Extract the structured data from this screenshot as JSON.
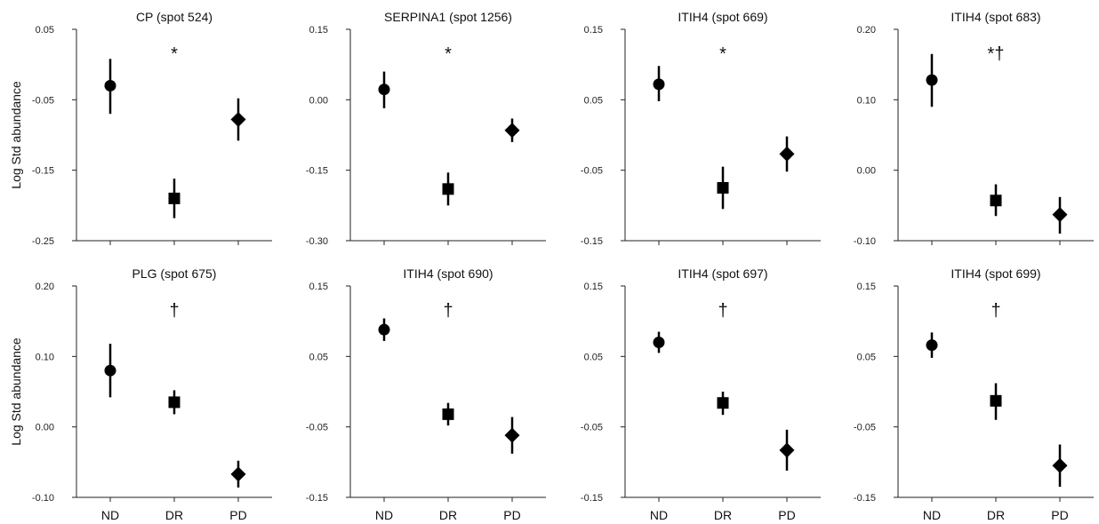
{
  "chart_data": [
    {
      "type": "scatter",
      "title": "CP (spot 524)",
      "ylabel": "Log Std abundance",
      "categories": [
        "ND",
        "DR",
        "PD"
      ],
      "ylim": [
        -0.25,
        0.05
      ],
      "yticks": [
        "0.05",
        "-0.05",
        "-0.15",
        "-0.25"
      ],
      "annotation": "*",
      "points": [
        {
          "category": "ND",
          "y": -0.03,
          "low": -0.07,
          "high": 0.008,
          "marker": "circle"
        },
        {
          "category": "DR",
          "y": -0.19,
          "low": -0.218,
          "high": -0.162,
          "marker": "square"
        },
        {
          "category": "PD",
          "y": -0.078,
          "low": -0.108,
          "high": -0.048,
          "marker": "diamond"
        }
      ]
    },
    {
      "type": "scatter",
      "title": "SERPINA1 (spot 1256)",
      "ylabel": "",
      "categories": [
        "ND",
        "DR",
        "PD"
      ],
      "ylim": [
        -0.3,
        0.15
      ],
      "yticks": [
        "0.15",
        "0.00",
        "-0.15",
        "-0.30"
      ],
      "annotation": "*",
      "points": [
        {
          "category": "ND",
          "y": 0.022,
          "low": -0.018,
          "high": 0.06,
          "marker": "circle"
        },
        {
          "category": "DR",
          "y": -0.19,
          "low": -0.225,
          "high": -0.155,
          "marker": "square"
        },
        {
          "category": "PD",
          "y": -0.065,
          "low": -0.09,
          "high": -0.04,
          "marker": "diamond"
        }
      ]
    },
    {
      "type": "scatter",
      "title": "ITIH4 (spot 669)",
      "ylabel": "",
      "categories": [
        "ND",
        "DR",
        "PD"
      ],
      "ylim": [
        -0.15,
        0.15
      ],
      "yticks": [
        "0.15",
        "0.05",
        "-0.05",
        "-0.15"
      ],
      "annotation": "*",
      "points": [
        {
          "category": "ND",
          "y": 0.072,
          "low": 0.048,
          "high": 0.098,
          "marker": "circle"
        },
        {
          "category": "DR",
          "y": -0.075,
          "low": -0.105,
          "high": -0.045,
          "marker": "square"
        },
        {
          "category": "PD",
          "y": -0.027,
          "low": -0.052,
          "high": -0.002,
          "marker": "diamond"
        }
      ]
    },
    {
      "type": "scatter",
      "title": "ITIH4 (spot 683)",
      "ylabel": "",
      "categories": [
        "ND",
        "DR",
        "PD"
      ],
      "ylim": [
        -0.1,
        0.2
      ],
      "yticks": [
        "0.20",
        "0.10",
        "0.00",
        "-0.10"
      ],
      "annotation": "*†",
      "points": [
        {
          "category": "ND",
          "y": 0.128,
          "low": 0.09,
          "high": 0.165,
          "marker": "circle"
        },
        {
          "category": "DR",
          "y": -0.043,
          "low": -0.065,
          "high": -0.02,
          "marker": "square"
        },
        {
          "category": "PD",
          "y": -0.063,
          "low": -0.09,
          "high": -0.038,
          "marker": "diamond"
        }
      ]
    },
    {
      "type": "scatter",
      "title": "PLG (spot 675)",
      "ylabel": "Log Std abundance",
      "categories": [
        "ND",
        "DR",
        "PD"
      ],
      "ylim": [
        -0.1,
        0.2
      ],
      "yticks": [
        "0.20",
        "0.10",
        "0.00",
        "-0.10"
      ],
      "annotation": "†",
      "points": [
        {
          "category": "ND",
          "y": 0.08,
          "low": 0.042,
          "high": 0.118,
          "marker": "circle"
        },
        {
          "category": "DR",
          "y": 0.035,
          "low": 0.018,
          "high": 0.052,
          "marker": "square"
        },
        {
          "category": "PD",
          "y": -0.067,
          "low": -0.086,
          "high": -0.048,
          "marker": "diamond"
        }
      ]
    },
    {
      "type": "scatter",
      "title": "ITIH4 (spot 690)",
      "ylabel": "",
      "categories": [
        "ND",
        "DR",
        "PD"
      ],
      "ylim": [
        -0.15,
        0.15
      ],
      "yticks": [
        "0.15",
        "0.05",
        "-0.05",
        "-0.15"
      ],
      "annotation": "†",
      "points": [
        {
          "category": "ND",
          "y": 0.088,
          "low": 0.072,
          "high": 0.104,
          "marker": "circle"
        },
        {
          "category": "DR",
          "y": -0.032,
          "low": -0.048,
          "high": -0.016,
          "marker": "square"
        },
        {
          "category": "PD",
          "y": -0.062,
          "low": -0.088,
          "high": -0.036,
          "marker": "diamond"
        }
      ]
    },
    {
      "type": "scatter",
      "title": "ITIH4 (spot 697)",
      "ylabel": "",
      "categories": [
        "ND",
        "DR",
        "PD"
      ],
      "ylim": [
        -0.15,
        0.15
      ],
      "yticks": [
        "0.15",
        "0.05",
        "-0.05",
        "-0.15"
      ],
      "annotation": "†",
      "points": [
        {
          "category": "ND",
          "y": 0.07,
          "low": 0.055,
          "high": 0.085,
          "marker": "circle"
        },
        {
          "category": "DR",
          "y": -0.016,
          "low": -0.033,
          "high": 0.0,
          "marker": "square"
        },
        {
          "category": "PD",
          "y": -0.083,
          "low": -0.112,
          "high": -0.054,
          "marker": "diamond"
        }
      ]
    },
    {
      "type": "scatter",
      "title": "ITIH4 (spot 699)",
      "ylabel": "",
      "categories": [
        "ND",
        "DR",
        "PD"
      ],
      "ylim": [
        -0.15,
        0.15
      ],
      "yticks": [
        "0.15",
        "0.05",
        "-0.05",
        "-0.15"
      ],
      "annotation": "†",
      "points": [
        {
          "category": "ND",
          "y": 0.066,
          "low": 0.048,
          "high": 0.084,
          "marker": "circle"
        },
        {
          "category": "DR",
          "y": -0.013,
          "low": -0.04,
          "high": 0.012,
          "marker": "square"
        },
        {
          "category": "PD",
          "y": -0.105,
          "low": -0.135,
          "high": -0.075,
          "marker": "diamond"
        }
      ]
    }
  ]
}
